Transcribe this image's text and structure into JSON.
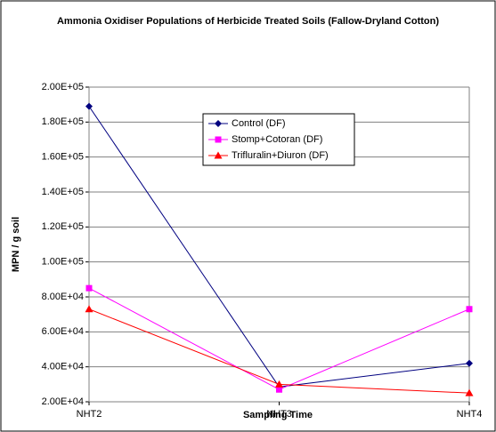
{
  "chart_data": {
    "type": "line",
    "title": "Ammonia Oxidiser Populations of Herbicide Treated Soils (Fallow-Dryland Cotton)",
    "x_label": "Sampling Time",
    "y_label": "MPN / g soil",
    "categories": [
      "NHT2",
      "NHT3",
      "NHT4"
    ],
    "series": [
      {
        "name": "Control (DF)",
        "color": "#000080",
        "marker": "diamond",
        "values": [
          189000,
          28500,
          42000
        ]
      },
      {
        "name": "Stomp+Cotoran (DF)",
        "color": "#ff00ff",
        "marker": "square",
        "values": [
          85000,
          27000,
          73000
        ]
      },
      {
        "name": "Trifluralin+Diuron (DF)",
        "color": "#ff0000",
        "marker": "triangle",
        "values": [
          73000,
          30000,
          25000
        ]
      }
    ],
    "ylim": [
      20000,
      200000
    ],
    "yticks": [
      {
        "value": 20000,
        "label": "2.00E+04"
      },
      {
        "value": 40000,
        "label": "4.00E+04"
      },
      {
        "value": 60000,
        "label": "6.00E+04"
      },
      {
        "value": 80000,
        "label": "8.00E+04"
      },
      {
        "value": 100000,
        "label": "1.00E+05"
      },
      {
        "value": 120000,
        "label": "1.20E+05"
      },
      {
        "value": 140000,
        "label": "1.40E+05"
      },
      {
        "value": 160000,
        "label": "1.60E+05"
      },
      {
        "value": 180000,
        "label": "1.80E+05"
      },
      {
        "value": 200000,
        "label": "2.00E+05"
      }
    ],
    "grid": true,
    "legend": "top"
  }
}
